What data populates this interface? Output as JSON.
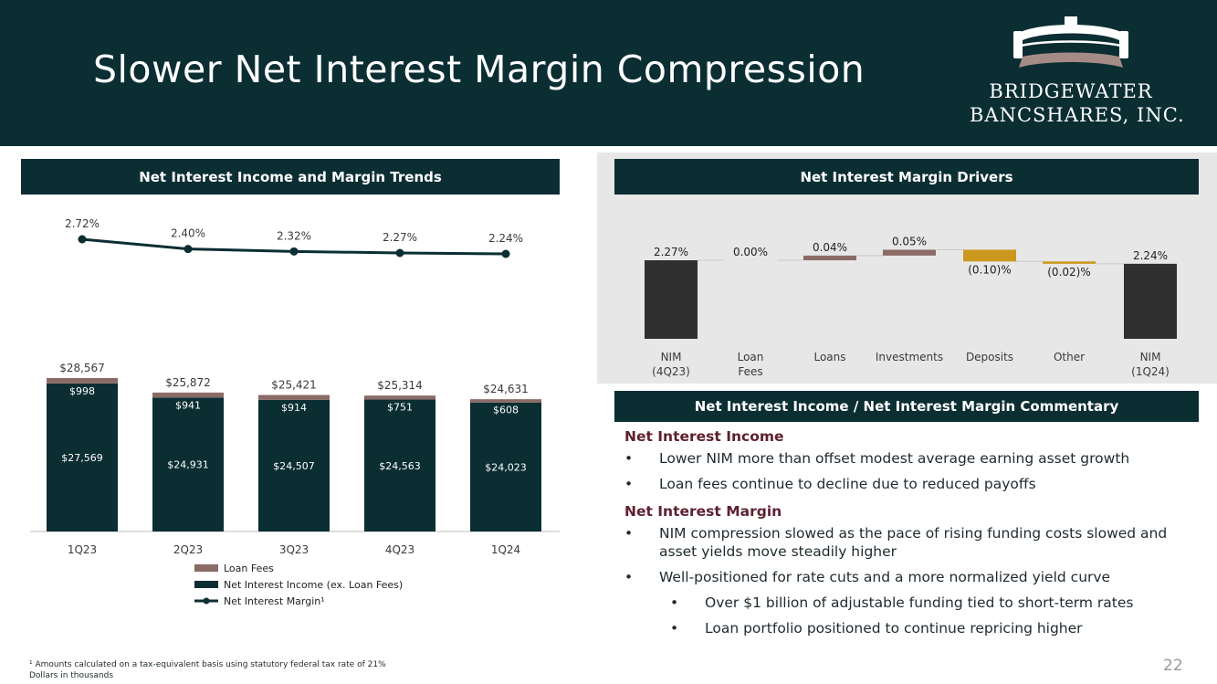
{
  "header": {
    "title": "Slower Net Interest Margin Compression",
    "logo_line1": "BRIDGEWATER",
    "logo_line2": "BANCSHARES, INC."
  },
  "left_section": {
    "title": "Net Interest Income and Margin Trends"
  },
  "drivers_section": {
    "title": "Net Interest Margin Drivers"
  },
  "commentary": {
    "title": "Net Interest Income / Net Interest Margin Commentary",
    "groups": [
      {
        "heading": "Net Interest Income",
        "items": [
          "Lower NIM more than offset modest average earning asset growth",
          "Loan fees continue to decline due to reduced payoffs"
        ]
      },
      {
        "heading": "Net Interest Margin",
        "items": [
          "NIM compression slowed as the pace of rising funding costs slowed and asset yields move steadily higher",
          "Well-positioned for rate cuts and a more normalized yield curve"
        ],
        "subitems": [
          "Over $1 billion of adjustable funding tied to short-term rates",
          "Loan portfolio positioned to continue repricing higher"
        ]
      }
    ]
  },
  "footnote": {
    "line1": "¹ Amounts calculated on a tax-equivalent basis using statutory federal tax rate of 21%",
    "line2": "Dollars in thousands"
  },
  "page_number": "22",
  "colors": {
    "navy": "#0b2e33",
    "loan_fees": "#8b6b66",
    "negative": "#c9981c",
    "dark_bar": "#2f2f2f",
    "maroon": "#5e2130",
    "panel_bg": "#e7e7e7"
  },
  "chart_data": [
    {
      "type": "bar",
      "stacked": true,
      "title": "Net Interest Income and Margin Trends",
      "categories": [
        "1Q23",
        "2Q23",
        "3Q23",
        "4Q23",
        "1Q24"
      ],
      "series": [
        {
          "name": "Net Interest Income (ex. Loan Fees)",
          "values": [
            27569,
            24931,
            24507,
            24563,
            24023
          ],
          "labels": [
            "$27,569",
            "$24,931",
            "$24,507",
            "$24,563",
            "$24,023"
          ]
        },
        {
          "name": "Loan Fees",
          "values": [
            998,
            941,
            914,
            751,
            608
          ],
          "labels": [
            "$998",
            "$941",
            "$914",
            "$751",
            "$608"
          ]
        }
      ],
      "totals": [
        28567,
        25872,
        25421,
        25314,
        24631
      ],
      "total_labels": [
        "$28,567",
        "$25,872",
        "$25,421",
        "$25,314",
        "$24,631"
      ],
      "line_series": {
        "name": "Net Interest Margin¹",
        "values": [
          2.72,
          2.4,
          2.32,
          2.27,
          2.24
        ],
        "labels": [
          "2.72%",
          "2.40%",
          "2.32%",
          "2.27%",
          "2.24%"
        ]
      },
      "ylim": [
        0,
        30000
      ],
      "line_ylim": [
        0,
        2.8
      ],
      "legend": [
        "Loan Fees",
        "Net Interest Income (ex. Loan Fees)",
        "Net Interest Margin¹"
      ],
      "legend_position": "bottom"
    },
    {
      "type": "waterfall",
      "title": "Net Interest Margin Drivers",
      "categories": [
        "NIM\n(4Q23)",
        "Loan\nFees",
        "Loans",
        "Investments",
        "Deposits",
        "Other",
        "NIM\n(1Q24)"
      ],
      "values": [
        2.27,
        0.0,
        0.04,
        0.05,
        -0.1,
        -0.02,
        2.24
      ],
      "labels": [
        "2.27%",
        "0.00%",
        "0.04%",
        "0.05%",
        "(0.10)%",
        "(0.02)%",
        "2.24%"
      ],
      "kinds": [
        "total",
        "delta",
        "delta",
        "delta",
        "delta",
        "delta",
        "total"
      ],
      "ylim": [
        1.6,
        2.4
      ]
    }
  ]
}
